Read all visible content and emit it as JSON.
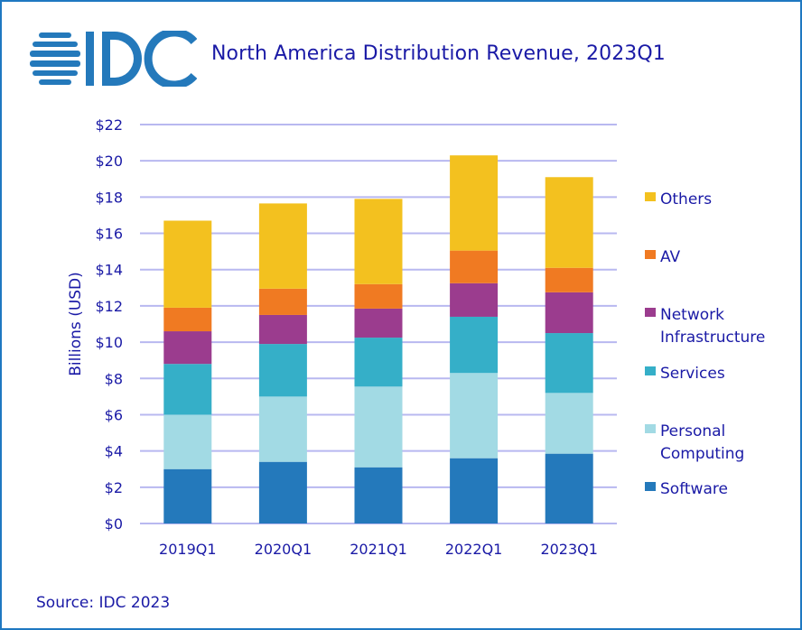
{
  "header": {
    "logo_text": "IDC",
    "title": "North America Distribution Revenue, 2023Q1"
  },
  "footer": {
    "source": "Source: IDC 2023"
  },
  "colors": {
    "frame": "#1f78c1",
    "text": "#1a1aa6",
    "gridline": "#b8b8f0"
  },
  "chart_data": {
    "type": "bar",
    "stacked": true,
    "title": "North America Distribution Revenue, 2023Q1",
    "xlabel": "",
    "ylabel": "Billions (USD)",
    "ylim": [
      0,
      22
    ],
    "yticks": [
      0,
      2,
      4,
      6,
      8,
      10,
      12,
      14,
      16,
      18,
      20,
      22
    ],
    "ytick_labels": [
      "$0",
      "$2",
      "$4",
      "$6",
      "$8",
      "$10",
      "$12",
      "$14",
      "$16",
      "$18",
      "$20",
      "$22"
    ],
    "grid": true,
    "legend_position": "right",
    "categories": [
      "2019Q1",
      "2020Q1",
      "2021Q1",
      "2022Q1",
      "2023Q1"
    ],
    "series": [
      {
        "name": "Software",
        "color": "#2479bb",
        "values": [
          3.0,
          3.4,
          3.1,
          3.6,
          3.85
        ]
      },
      {
        "name": "Personal Computing",
        "color": "#a2dae4",
        "values": [
          3.0,
          3.6,
          4.45,
          4.7,
          3.35
        ]
      },
      {
        "name": "Services",
        "color": "#35afc8",
        "values": [
          2.8,
          2.9,
          2.7,
          3.1,
          3.3
        ]
      },
      {
        "name": "Network Infrastructure",
        "color": "#9b3c8e",
        "values": [
          1.8,
          1.6,
          1.6,
          1.85,
          2.25
        ]
      },
      {
        "name": "AV",
        "color": "#f07a22",
        "values": [
          1.3,
          1.45,
          1.35,
          1.8,
          1.35
        ]
      },
      {
        "name": "Others",
        "color": "#f3c11f",
        "values": [
          4.8,
          4.7,
          4.7,
          5.25,
          5.0
        ]
      }
    ],
    "legend": [
      {
        "lines": [
          "Others"
        ],
        "color": "#f3c11f"
      },
      {
        "lines": [
          "AV"
        ],
        "color": "#f07a22"
      },
      {
        "lines": [
          "Network",
          "Infrastructure"
        ],
        "color": "#9b3c8e"
      },
      {
        "lines": [
          "Services"
        ],
        "color": "#35afc8"
      },
      {
        "lines": [
          "Personal",
          "Computing"
        ],
        "color": "#a2dae4"
      },
      {
        "lines": [
          "Software"
        ],
        "color": "#2479bb"
      }
    ]
  }
}
